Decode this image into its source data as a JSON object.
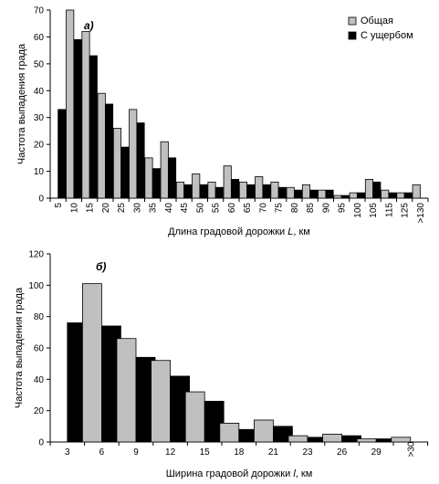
{
  "chart_data": [
    {
      "type": "bar",
      "panel_label": "а)",
      "title": "",
      "xlabel_prefix": "Длина градовой дорожки ",
      "xlabel_var": "L",
      "xlabel_suffix": ", км",
      "ylabel": "Частота выпадения града",
      "ylim": [
        0,
        70
      ],
      "yticks": [
        0,
        10,
        20,
        30,
        40,
        50,
        60,
        70
      ],
      "grid": false,
      "legend_position": "top-right",
      "colors": {
        "Общая": "#c0c0c0",
        "С ущербом": "#000000"
      },
      "categories": [
        "5",
        "10",
        "15",
        "20",
        "25",
        "30",
        "35",
        "40",
        "45",
        "50",
        "55",
        "60",
        "65",
        "70",
        "75",
        "80",
        "85",
        "90",
        "95",
        "100",
        "105",
        "115",
        "125",
        ">130"
      ],
      "series": [
        {
          "name": "Общая",
          "color": "#c0c0c0",
          "values": [
            0,
            70,
            62,
            39,
            26,
            33,
            15,
            21,
            6,
            9,
            6,
            12,
            6,
            8,
            6,
            4,
            5,
            3,
            1,
            2,
            7,
            3,
            2,
            5
          ]
        },
        {
          "name": "С ущербом",
          "color": "#000000",
          "values": [
            33,
            59,
            53,
            35,
            19,
            28,
            11,
            15,
            5,
            5,
            4,
            7,
            5,
            5,
            4,
            3,
            3,
            3,
            1,
            2,
            6,
            2,
            2,
            0
          ]
        }
      ]
    },
    {
      "type": "bar",
      "panel_label": "б)",
      "title": "",
      "xlabel_prefix": "Ширина градовой дорожки ",
      "xlabel_var": "l",
      "xlabel_suffix": ", км",
      "ylabel": "Частота выпадения града",
      "ylim": [
        0,
        120
      ],
      "yticks": [
        0,
        20,
        40,
        60,
        80,
        100,
        120
      ],
      "grid": false,
      "categories": [
        "3",
        "6",
        "9",
        "12",
        "15",
        "18",
        "21",
        "23",
        "26",
        "29",
        ">30"
      ],
      "series": [
        {
          "name": "Общая",
          "color": "#c0c0c0",
          "values": [
            0,
            101,
            66,
            52,
            32,
            12,
            14,
            4,
            5,
            2,
            3
          ]
        },
        {
          "name": "С ущербом",
          "color": "#000000",
          "values": [
            76,
            74,
            54,
            42,
            26,
            8,
            10,
            3,
            4,
            2,
            0
          ]
        }
      ]
    }
  ]
}
